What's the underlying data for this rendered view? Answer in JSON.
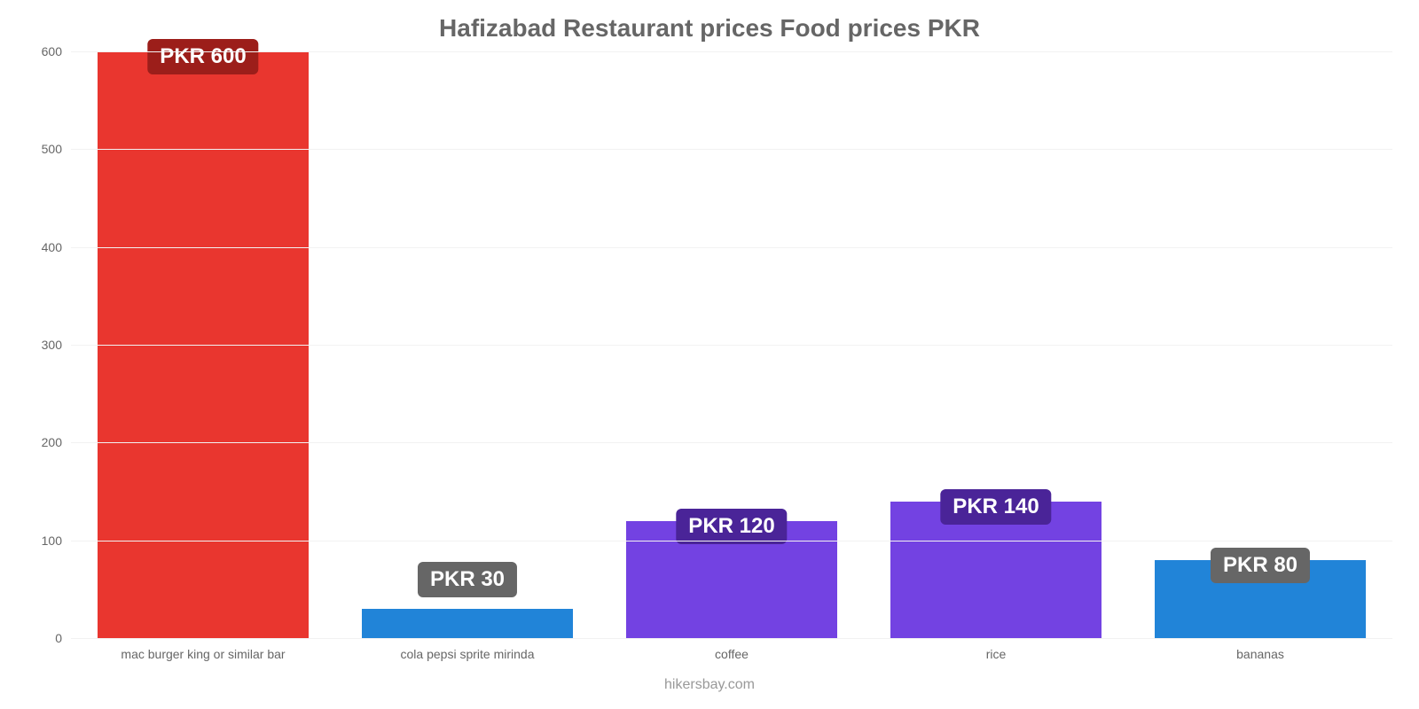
{
  "chart": {
    "type": "bar",
    "title": "Hafizabad Restaurant prices Food prices PKR",
    "title_color": "#666666",
    "title_fontsize": 28,
    "footer": "hikersbay.com",
    "footer_color": "#999999",
    "footer_fontsize": 16,
    "background_color": "#ffffff",
    "grid_color": "#f2f2f2",
    "axis_text_color": "#666666",
    "xlabel_fontsize": 14,
    "ylim": [
      0,
      600
    ],
    "ytick_step": 100,
    "yticks": [
      0,
      100,
      200,
      300,
      400,
      500,
      600
    ],
    "bar_width_pct": 80,
    "value_label_prefix": "PKR ",
    "value_label_fontsize": 24,
    "value_label_text_color": "#ffffff",
    "categories": [
      "mac burger king or similar bar",
      "cola pepsi sprite mirinda",
      "coffee",
      "rice",
      "bananas"
    ],
    "values": [
      600,
      30,
      120,
      140,
      80
    ],
    "bar_colors": [
      "#e9362f",
      "#2184d8",
      "#7342e2",
      "#7342e2",
      "#2184d8"
    ],
    "value_label_bg_colors": [
      "#9c1e1a",
      "#666666",
      "#4a2498",
      "#4a2498",
      "#666666"
    ]
  }
}
